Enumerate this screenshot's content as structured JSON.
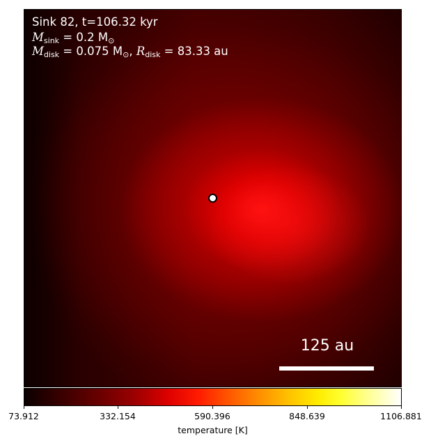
{
  "annotation": {
    "line1": "Sink 82, t=106.32 kyr",
    "m_sink_symbol": "M",
    "m_sink_sub": "sink",
    "m_sink_value": " = 0.2 M",
    "m_sink_unit_sub": "⊙",
    "m_disk_symbol": "M",
    "m_disk_sub": "disk",
    "m_disk_value": " = 0.075 M",
    "m_disk_unit_sub": "⊙",
    "separator": ", ",
    "r_disk_symbol": "R",
    "r_disk_sub": "disk",
    "r_disk_value": " = 83.33 au"
  },
  "scale_bar": {
    "label": "125 au"
  },
  "colorbar": {
    "title": "temperature [K]",
    "ticks": [
      "73.912",
      "332.154",
      "590.396",
      "848.639",
      "1106.881"
    ],
    "colormap": "hot"
  },
  "colors": {
    "sink_marker": "#ffffff",
    "annotation_text": "#ffffff"
  }
}
